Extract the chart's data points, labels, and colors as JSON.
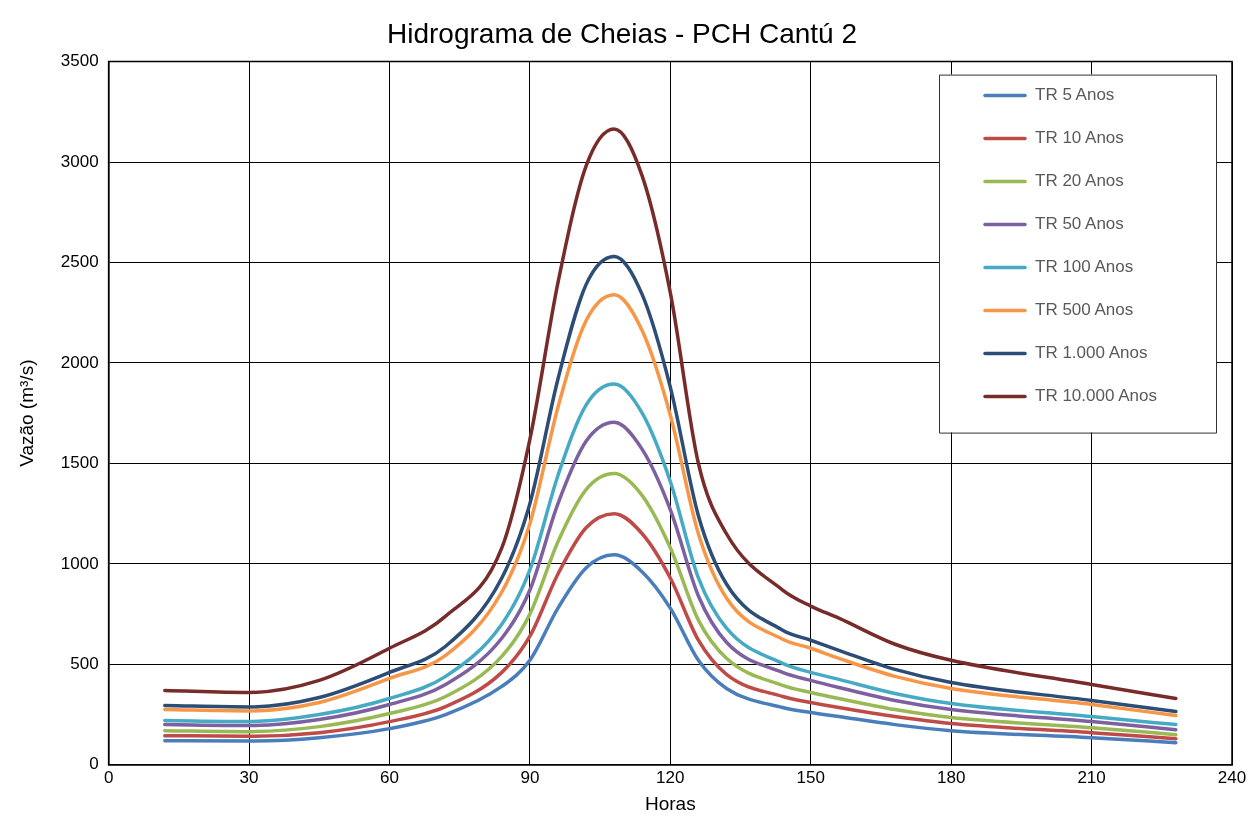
{
  "chart_data": {
    "type": "line",
    "title": "Hidrograma de Cheias - PCH Cantú 2",
    "xlabel": "Horas",
    "ylabel": "Vazão (m³/s)",
    "x": [
      12,
      30,
      45,
      60,
      72,
      84,
      90,
      96,
      102,
      108,
      114,
      120,
      126,
      132,
      144,
      150,
      156,
      168,
      180,
      210,
      228
    ],
    "xlim": [
      0,
      240
    ],
    "xticks": [
      0,
      30,
      60,
      90,
      120,
      150,
      180,
      210,
      240
    ],
    "ylim": [
      0,
      3500
    ],
    "yticks": [
      0,
      500,
      1000,
      1500,
      2000,
      2500,
      3000,
      3500
    ],
    "grid": true,
    "legend": "top right",
    "marker": "none",
    "line_style": "solid",
    "series": [
      {
        "name": "TR 5 Anos",
        "color": "#4a7ebb",
        "values": [
          120,
          118,
          135,
          180,
          250,
          390,
          520,
          780,
          980,
          1045,
          960,
          780,
          520,
          380,
          285,
          260,
          240,
          200,
          170,
          135,
          110
        ]
      },
      {
        "name": "TR 10 Anos",
        "color": "#be4b48",
        "values": [
          145,
          142,
          160,
          215,
          290,
          460,
          640,
          950,
          1180,
          1250,
          1150,
          930,
          620,
          450,
          340,
          310,
          285,
          240,
          205,
          160,
          130
        ]
      },
      {
        "name": "TR 20 Anos",
        "color": "#98b954",
        "values": [
          170,
          165,
          190,
          255,
          340,
          540,
          750,
          1110,
          1370,
          1450,
          1340,
          1080,
          720,
          530,
          395,
          360,
          330,
          275,
          235,
          185,
          150
        ]
      },
      {
        "name": "TR 50 Anos",
        "color": "#7d60a0",
        "values": [
          200,
          195,
          225,
          300,
          400,
          630,
          870,
          1300,
          1610,
          1705,
          1570,
          1270,
          840,
          610,
          460,
          420,
          385,
          320,
          275,
          215,
          175
        ]
      },
      {
        "name": "TR 100 Anos",
        "color": "#46aac5",
        "values": [
          220,
          215,
          250,
          330,
          440,
          700,
          970,
          1440,
          1790,
          1895,
          1750,
          1410,
          930,
          680,
          505,
          460,
          425,
          355,
          305,
          240,
          200
        ]
      },
      {
        "name": "TR 500 Anos",
        "color": "#f79646",
        "values": [
          275,
          268,
          310,
          430,
          545,
          860,
          1200,
          1780,
          2210,
          2340,
          2160,
          1740,
          1150,
          830,
          625,
          580,
          530,
          440,
          380,
          300,
          245
        ]
      },
      {
        "name": "TR 1.000 Anos",
        "color": "#2c4d75",
        "values": [
          295,
          288,
          335,
          460,
          590,
          930,
          1300,
          1920,
          2390,
          2530,
          2340,
          1880,
          1240,
          900,
          670,
          620,
          570,
          475,
          410,
          320,
          265
        ]
      },
      {
        "name": "TR 10.000 Anos",
        "color": "#772c2a",
        "values": [
          370,
          360,
          420,
          580,
          740,
          1080,
          1620,
          2400,
          2980,
          3165,
          2930,
          2350,
          1500,
          1150,
          870,
          790,
          730,
          600,
          520,
          400,
          330
        ]
      }
    ]
  }
}
